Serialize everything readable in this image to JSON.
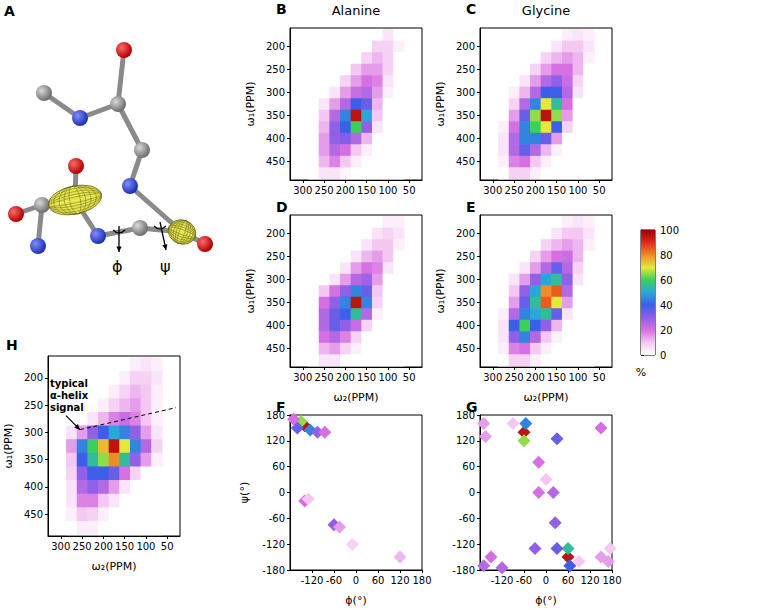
{
  "diagram": {
    "panel_label": "A",
    "phi": "ϕ",
    "psi": "ψ"
  },
  "colorbar": {
    "range": [
      0,
      100
    ],
    "ticks": [
      0,
      20,
      40,
      60,
      80,
      100
    ],
    "label": "%"
  },
  "chart_data": [
    {
      "panel_label": "B",
      "type": "heatmap",
      "title": "Alanine",
      "ylabel": "ω₁(PPM)",
      "xlim": [
        330,
        20
      ],
      "ylim": [
        490,
        160
      ],
      "xticks": [
        300,
        250,
        200,
        150,
        100,
        50
      ],
      "yticks": [
        200,
        250,
        300,
        350,
        400,
        450
      ],
      "x": [
        275,
        250,
        225,
        200,
        175,
        150,
        125,
        100,
        75
      ],
      "y": [
        175,
        200,
        225,
        250,
        275,
        300,
        325,
        350,
        375,
        400,
        425,
        450,
        475
      ],
      "z": [
        [
          0,
          0,
          0,
          0,
          0,
          0,
          0,
          5,
          0
        ],
        [
          0,
          0,
          0,
          0,
          0,
          0,
          8,
          8,
          3
        ],
        [
          0,
          0,
          0,
          0,
          0,
          8,
          12,
          8,
          0
        ],
        [
          0,
          0,
          0,
          0,
          10,
          15,
          15,
          8,
          0
        ],
        [
          0,
          0,
          0,
          8,
          15,
          20,
          18,
          5,
          0
        ],
        [
          0,
          0,
          5,
          15,
          22,
          25,
          15,
          3,
          0
        ],
        [
          0,
          5,
          15,
          25,
          40,
          35,
          12,
          0,
          0
        ],
        [
          0,
          10,
          25,
          45,
          95,
          50,
          10,
          0,
          0
        ],
        [
          0,
          12,
          30,
          40,
          60,
          30,
          5,
          0,
          0
        ],
        [
          0,
          15,
          30,
          32,
          25,
          12,
          0,
          0,
          0
        ],
        [
          0,
          15,
          25,
          20,
          10,
          3,
          0,
          0,
          0
        ],
        [
          0,
          12,
          18,
          10,
          3,
          0,
          0,
          0,
          0
        ],
        [
          0,
          5,
          5,
          2,
          0,
          0,
          0,
          0,
          0
        ]
      ]
    },
    {
      "panel_label": "C",
      "type": "heatmap",
      "title": "Glycine",
      "ylabel": "ω₁(PPM)",
      "xlim": [
        330,
        20
      ],
      "ylim": [
        490,
        160
      ],
      "xticks": [
        300,
        250,
        200,
        150,
        100,
        50
      ],
      "yticks": [
        200,
        250,
        300,
        350,
        400,
        450
      ],
      "x": [
        275,
        250,
        225,
        200,
        175,
        150,
        125,
        100,
        75
      ],
      "y": [
        175,
        200,
        225,
        250,
        275,
        300,
        325,
        350,
        375,
        400,
        425,
        450,
        475
      ],
      "z": [
        [
          0,
          0,
          0,
          0,
          0,
          0,
          3,
          5,
          3
        ],
        [
          0,
          0,
          0,
          0,
          0,
          5,
          10,
          10,
          5
        ],
        [
          0,
          0,
          0,
          0,
          8,
          12,
          15,
          12,
          3
        ],
        [
          0,
          0,
          0,
          8,
          15,
          20,
          20,
          12,
          0
        ],
        [
          0,
          0,
          5,
          15,
          25,
          30,
          22,
          8,
          0
        ],
        [
          0,
          3,
          12,
          25,
          40,
          40,
          25,
          5,
          0
        ],
        [
          0,
          8,
          25,
          45,
          70,
          55,
          20,
          0,
          0
        ],
        [
          0,
          15,
          35,
          65,
          95,
          65,
          15,
          0,
          0
        ],
        [
          3,
          20,
          45,
          60,
          70,
          40,
          8,
          0,
          0
        ],
        [
          5,
          25,
          45,
          45,
          35,
          15,
          0,
          0,
          0
        ],
        [
          5,
          25,
          35,
          25,
          12,
          3,
          0,
          0,
          0
        ],
        [
          3,
          18,
          20,
          10,
          3,
          0,
          0,
          0,
          0
        ],
        [
          0,
          8,
          8,
          3,
          0,
          0,
          0,
          0,
          0
        ]
      ]
    },
    {
      "panel_label": "D",
      "type": "heatmap",
      "xlabel": "ω₂(PPM)",
      "ylabel": "ω₁(PPM)",
      "xlim": [
        330,
        20
      ],
      "ylim": [
        490,
        160
      ],
      "xticks": [
        300,
        250,
        200,
        150,
        100,
        50
      ],
      "yticks": [
        200,
        250,
        300,
        350,
        400,
        450
      ],
      "x": [
        275,
        250,
        225,
        200,
        175,
        150,
        125,
        100,
        75
      ],
      "y": [
        175,
        200,
        225,
        250,
        275,
        300,
        325,
        350,
        375,
        400,
        425,
        450,
        475
      ],
      "z": [
        [
          0,
          0,
          0,
          0,
          0,
          0,
          0,
          3,
          3
        ],
        [
          0,
          0,
          0,
          0,
          0,
          0,
          5,
          8,
          5
        ],
        [
          0,
          0,
          0,
          0,
          0,
          5,
          10,
          10,
          3
        ],
        [
          0,
          0,
          0,
          0,
          5,
          12,
          15,
          10,
          0
        ],
        [
          0,
          0,
          0,
          5,
          15,
          20,
          18,
          5,
          0
        ],
        [
          0,
          0,
          5,
          15,
          25,
          28,
          15,
          0,
          0
        ],
        [
          0,
          10,
          20,
          30,
          45,
          35,
          10,
          0,
          0
        ],
        [
          0,
          20,
          30,
          45,
          95,
          45,
          8,
          0,
          0
        ],
        [
          0,
          25,
          35,
          40,
          55,
          25,
          3,
          0,
          0
        ],
        [
          0,
          25,
          35,
          30,
          22,
          8,
          0,
          0,
          0
        ],
        [
          0,
          20,
          25,
          18,
          8,
          0,
          0,
          0,
          0
        ],
        [
          0,
          12,
          15,
          8,
          3,
          0,
          0,
          0,
          0
        ],
        [
          0,
          5,
          5,
          0,
          0,
          0,
          0,
          0,
          0
        ]
      ]
    },
    {
      "panel_label": "E",
      "type": "heatmap",
      "xlabel": "ω₂(PPM)",
      "ylabel": "ω₁(PPM)",
      "xlim": [
        330,
        20
      ],
      "ylim": [
        490,
        160
      ],
      "xticks": [
        300,
        250,
        200,
        150,
        100,
        50
      ],
      "yticks": [
        200,
        250,
        300,
        350,
        400,
        450
      ],
      "x": [
        275,
        250,
        225,
        200,
        175,
        150,
        125,
        100,
        75
      ],
      "y": [
        175,
        200,
        225,
        250,
        275,
        300,
        325,
        350,
        375,
        400,
        425,
        450,
        475
      ],
      "z": [
        [
          0,
          0,
          0,
          0,
          0,
          0,
          3,
          5,
          3
        ],
        [
          0,
          0,
          0,
          0,
          0,
          5,
          10,
          10,
          5
        ],
        [
          0,
          0,
          0,
          0,
          8,
          12,
          15,
          12,
          3
        ],
        [
          0,
          0,
          0,
          8,
          15,
          20,
          22,
          12,
          0
        ],
        [
          0,
          0,
          5,
          15,
          25,
          35,
          25,
          8,
          0
        ],
        [
          0,
          5,
          15,
          30,
          50,
          55,
          30,
          5,
          0
        ],
        [
          0,
          10,
          30,
          50,
          80,
          85,
          25,
          0,
          0
        ],
        [
          0,
          15,
          35,
          55,
          85,
          70,
          15,
          0,
          0
        ],
        [
          3,
          25,
          45,
          50,
          55,
          35,
          5,
          0,
          0
        ],
        [
          5,
          40,
          60,
          40,
          30,
          12,
          0,
          0,
          0
        ],
        [
          5,
          30,
          45,
          25,
          10,
          3,
          0,
          0,
          0
        ],
        [
          3,
          18,
          20,
          10,
          3,
          0,
          0,
          0,
          0
        ],
        [
          0,
          8,
          8,
          3,
          0,
          0,
          0,
          0,
          0
        ]
      ]
    },
    {
      "panel_label": "F",
      "type": "scatter",
      "marker": "diamond",
      "xlabel": "ϕ(°)",
      "ylabel": "ψ(°)",
      "xlim": [
        -180,
        180
      ],
      "ylim": [
        -180,
        180
      ],
      "xticks": [
        -180,
        -120,
        -60,
        0,
        60,
        120,
        180
      ],
      "yticks": [
        -180,
        -120,
        -60,
        0,
        60,
        120,
        180
      ],
      "x": [
        -140,
        -150,
        -125,
        -105,
        -85,
        -160,
        -140,
        -60,
        -45,
        -10,
        120,
        -130,
        -170
      ],
      "y": [
        155,
        165,
        145,
        140,
        140,
        150,
        -20,
        -75,
        -80,
        -120,
        -150,
        -15,
        170
      ],
      "values": [
        95,
        65,
        45,
        30,
        20,
        35,
        20,
        30,
        15,
        8,
        12,
        10,
        20
      ]
    },
    {
      "panel_label": "G",
      "type": "scatter",
      "marker": "diamond",
      "xlabel": "ϕ(°)",
      "xlim": [
        -180,
        180
      ],
      "ylim": [
        -180,
        180
      ],
      "xticks": [
        -180,
        -120,
        -60,
        0,
        60,
        120,
        180
      ],
      "yticks": [
        -180,
        -120,
        -60,
        0,
        60,
        120,
        180
      ],
      "x": [
        -60,
        -60,
        -55,
        60,
        60,
        65,
        30,
        -20,
        -20,
        20,
        25,
        -30,
        30,
        0,
        -150,
        -170,
        150,
        170,
        -90,
        90,
        -170,
        150,
        -120,
        -165,
        175
      ],
      "y": [
        140,
        120,
        160,
        -150,
        -130,
        -170,
        125,
        70,
        0,
        0,
        -70,
        -130,
        -130,
        30,
        -150,
        -170,
        150,
        -160,
        160,
        -160,
        160,
        -150,
        -175,
        130,
        -130
      ],
      "values": [
        95,
        65,
        45,
        95,
        55,
        40,
        35,
        20,
        20,
        25,
        30,
        30,
        35,
        10,
        20,
        25,
        20,
        15,
        10,
        10,
        15,
        15,
        25,
        15,
        10
      ]
    },
    {
      "panel_label": "H",
      "type": "heatmap",
      "xlabel": "ω₂(PPM)",
      "ylabel": "ω₁(PPM)",
      "xlim": [
        330,
        20
      ],
      "ylim": [
        490,
        160
      ],
      "xticks": [
        300,
        250,
        200,
        150,
        100,
        50
      ],
      "yticks": [
        200,
        250,
        300,
        350,
        400,
        450
      ],
      "x": [
        275,
        250,
        225,
        200,
        175,
        150,
        125,
        100,
        75
      ],
      "y": [
        175,
        200,
        225,
        250,
        275,
        300,
        325,
        350,
        375,
        400,
        425,
        450,
        475
      ],
      "z": [
        [
          0,
          0,
          0,
          0,
          0,
          0,
          3,
          5,
          3
        ],
        [
          0,
          0,
          0,
          0,
          0,
          3,
          8,
          8,
          5
        ],
        [
          0,
          0,
          0,
          0,
          3,
          8,
          12,
          10,
          3
        ],
        [
          0,
          0,
          0,
          3,
          8,
          12,
          15,
          10,
          3
        ],
        [
          0,
          0,
          5,
          12,
          18,
          22,
          18,
          10,
          3
        ],
        [
          5,
          15,
          30,
          40,
          50,
          45,
          30,
          15,
          5
        ],
        [
          15,
          45,
          60,
          75,
          95,
          70,
          45,
          25,
          8
        ],
        [
          10,
          40,
          55,
          65,
          80,
          55,
          30,
          15,
          3
        ],
        [
          8,
          30,
          40,
          40,
          35,
          20,
          8,
          0,
          0
        ],
        [
          5,
          25,
          30,
          25,
          15,
          5,
          0,
          0,
          0
        ],
        [
          5,
          18,
          18,
          10,
          5,
          0,
          0,
          0,
          0
        ],
        [
          3,
          10,
          8,
          3,
          0,
          0,
          0,
          0,
          0
        ],
        [
          0,
          3,
          3,
          0,
          0,
          0,
          0,
          0,
          0
        ]
      ],
      "annotation": {
        "text": "typical α-helix signal",
        "x": 255,
        "y": 295
      }
    }
  ]
}
